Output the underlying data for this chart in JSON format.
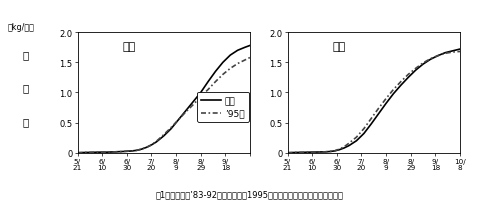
{
  "title_akita": "秋田",
  "title_morioka": "盛岡",
  "ylabel_unit": "（kg/㎡）",
  "ylabel_chars": [
    "乾",
    "物",
    "重"
  ],
  "xlabel_ticks_akita": [
    "5/\n21",
    "6/\n10",
    "6/\n30",
    "7/\n20",
    "8/\n9",
    "8/\n29",
    "9/\n18",
    ""
  ],
  "xlabel_ticks_morioka": [
    "5/\n21",
    "6/\n10",
    "6/\n30",
    "7/\n20",
    "8/\n9",
    "8/\n29",
    "9/\n18",
    "10/\n8"
  ],
  "xtick_positions": [
    0,
    1,
    2,
    3,
    4,
    5,
    6,
    7
  ],
  "ylim": [
    0,
    2.0
  ],
  "yticks": [
    0,
    0.5,
    1.0,
    1.5,
    2.0
  ],
  "legend_label_mean": "平均",
  "legend_label_95": "’95年",
  "caption": "図1．平均年（’83-92年の平均）と1995年における総乾物重の推移の比較",
  "akita_mean_x": [
    0,
    0.3,
    0.6,
    0.9,
    1.2,
    1.5,
    1.8,
    2.0,
    2.2,
    2.4,
    2.6,
    2.8,
    3.0,
    3.2,
    3.5,
    3.8,
    4.1,
    4.4,
    4.7,
    5.0,
    5.3,
    5.6,
    5.9,
    6.2,
    6.5,
    6.8,
    7.0
  ],
  "akita_mean_y": [
    0.0,
    0.005,
    0.007,
    0.01,
    0.01,
    0.015,
    0.02,
    0.025,
    0.03,
    0.04,
    0.06,
    0.09,
    0.13,
    0.18,
    0.28,
    0.4,
    0.55,
    0.7,
    0.85,
    1.0,
    1.18,
    1.35,
    1.5,
    1.62,
    1.7,
    1.75,
    1.78
  ],
  "akita_95_x": [
    0,
    0.3,
    0.6,
    0.9,
    1.2,
    1.5,
    1.8,
    2.0,
    2.2,
    2.4,
    2.6,
    2.8,
    3.0,
    3.2,
    3.5,
    3.8,
    4.1,
    4.4,
    4.7,
    5.0,
    5.3,
    5.6,
    5.9,
    6.2,
    6.5,
    6.8,
    7.0
  ],
  "akita_95_y": [
    0.0,
    0.005,
    0.007,
    0.01,
    0.01,
    0.015,
    0.02,
    0.025,
    0.03,
    0.04,
    0.06,
    0.09,
    0.13,
    0.19,
    0.3,
    0.42,
    0.55,
    0.68,
    0.8,
    0.93,
    1.05,
    1.18,
    1.3,
    1.4,
    1.48,
    1.54,
    1.58
  ],
  "morioka_mean_x": [
    0,
    0.3,
    0.6,
    0.9,
    1.2,
    1.5,
    1.7,
    1.9,
    2.1,
    2.3,
    2.5,
    2.8,
    3.1,
    3.4,
    3.7,
    4.0,
    4.3,
    4.6,
    4.9,
    5.2,
    5.5,
    5.8,
    6.1,
    6.4,
    6.7,
    7.0
  ],
  "morioka_mean_y": [
    0.0,
    0.005,
    0.007,
    0.01,
    0.012,
    0.015,
    0.02,
    0.03,
    0.05,
    0.08,
    0.12,
    0.2,
    0.32,
    0.48,
    0.65,
    0.82,
    0.98,
    1.12,
    1.25,
    1.37,
    1.47,
    1.55,
    1.61,
    1.66,
    1.69,
    1.72
  ],
  "morioka_95_x": [
    0,
    0.3,
    0.6,
    0.9,
    1.2,
    1.5,
    1.7,
    1.9,
    2.1,
    2.3,
    2.5,
    2.8,
    3.1,
    3.4,
    3.7,
    4.0,
    4.3,
    4.6,
    4.9,
    5.2,
    5.5,
    5.8,
    6.1,
    6.4,
    6.7,
    7.0
  ],
  "morioka_95_y": [
    0.0,
    0.005,
    0.007,
    0.01,
    0.012,
    0.015,
    0.02,
    0.03,
    0.06,
    0.1,
    0.16,
    0.26,
    0.4,
    0.57,
    0.74,
    0.9,
    1.05,
    1.18,
    1.3,
    1.4,
    1.49,
    1.56,
    1.61,
    1.65,
    1.67,
    1.68
  ],
  "bg_color": "#ffffff",
  "mean_color": "#000000",
  "y95_color": "#444444",
  "mean_linewidth": 1.2,
  "y95_linewidth": 1.2
}
